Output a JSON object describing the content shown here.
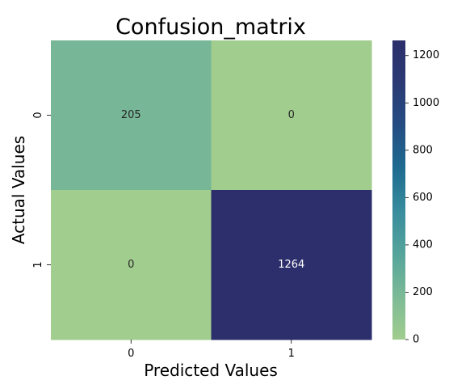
{
  "chart_data": {
    "type": "heatmap",
    "title": "Confusion_matrix",
    "xlabel": "Predicted Values",
    "ylabel": "Actual Values",
    "x_categories": [
      "0",
      "1"
    ],
    "y_categories": [
      "0",
      "1"
    ],
    "values": [
      [
        205,
        0
      ],
      [
        0,
        1264
      ]
    ],
    "colorbar": {
      "min": 0,
      "max": 1264,
      "ticks": [
        0,
        200,
        400,
        600,
        800,
        1000,
        1200
      ],
      "tick_labels": [
        "0",
        "200",
        "400",
        "600",
        "800",
        "1000",
        "1200"
      ]
    },
    "colormap": [
      "#a1cd8e",
      "#7cba96",
      "#55a49b",
      "#388c9d",
      "#1e6b90",
      "#254d83",
      "#2b3a75",
      "#2c2f6b"
    ],
    "cell_text_colors": {
      "dark": "#ffffff",
      "light": "#262626"
    }
  }
}
